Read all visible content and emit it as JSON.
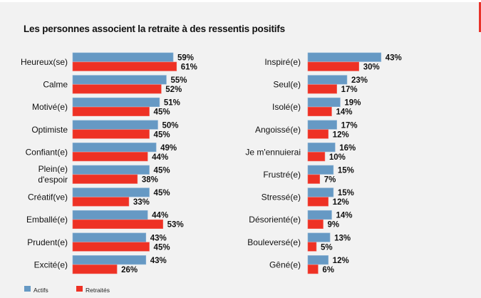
{
  "chart_data": [
    {
      "type": "bar",
      "orientation": "horizontal",
      "title": "Les personnes associent la retraite à des ressentis positifs",
      "categories": [
        "Heureux(se)",
        "Calme",
        "Motivé(e)",
        "Optimiste",
        "Confiant(e)",
        "Plein(e) d'espoir",
        "Créatif(ve)",
        "Emballé(e)",
        "Prudent(e)",
        "Excité(e)"
      ],
      "series": [
        {
          "name": "Actifs",
          "color": "#6699c4",
          "values": [
            59,
            55,
            51,
            50,
            49,
            45,
            45,
            44,
            43,
            43
          ]
        },
        {
          "name": "Retraités",
          "color": "#ee3124",
          "values": [
            61,
            52,
            45,
            45,
            44,
            38,
            33,
            53,
            45,
            26
          ]
        }
      ],
      "value_suffix": "%",
      "xlim": [
        0,
        100
      ],
      "grid": false
    },
    {
      "type": "bar",
      "orientation": "horizontal",
      "categories": [
        "Inspiré(e)",
        "Seul(e)",
        "Isolé(e)",
        "Angoissé(e)",
        "Je m'ennuierai",
        "Frustré(e)",
        "Stressé(e)",
        "Désorienté(e)",
        "Bouleversé(e)",
        "Gêné(e)"
      ],
      "series": [
        {
          "name": "Actifs",
          "color": "#6699c4",
          "values": [
            43,
            23,
            19,
            17,
            16,
            15,
            15,
            14,
            13,
            12
          ]
        },
        {
          "name": "Retraités",
          "color": "#ee3124",
          "values": [
            30,
            17,
            14,
            12,
            10,
            7,
            12,
            9,
            5,
            6
          ]
        }
      ],
      "value_suffix": "%",
      "xlim": [
        0,
        100
      ],
      "grid": false
    }
  ],
  "title": "Les personnes associent la retraite à des ressentis positifs",
  "legend": {
    "placement": "bottom-left",
    "items": [
      {
        "label": "Actifs",
        "color": "#6699c4"
      },
      {
        "label": "Retraités",
        "color": "#ee3124"
      }
    ]
  }
}
